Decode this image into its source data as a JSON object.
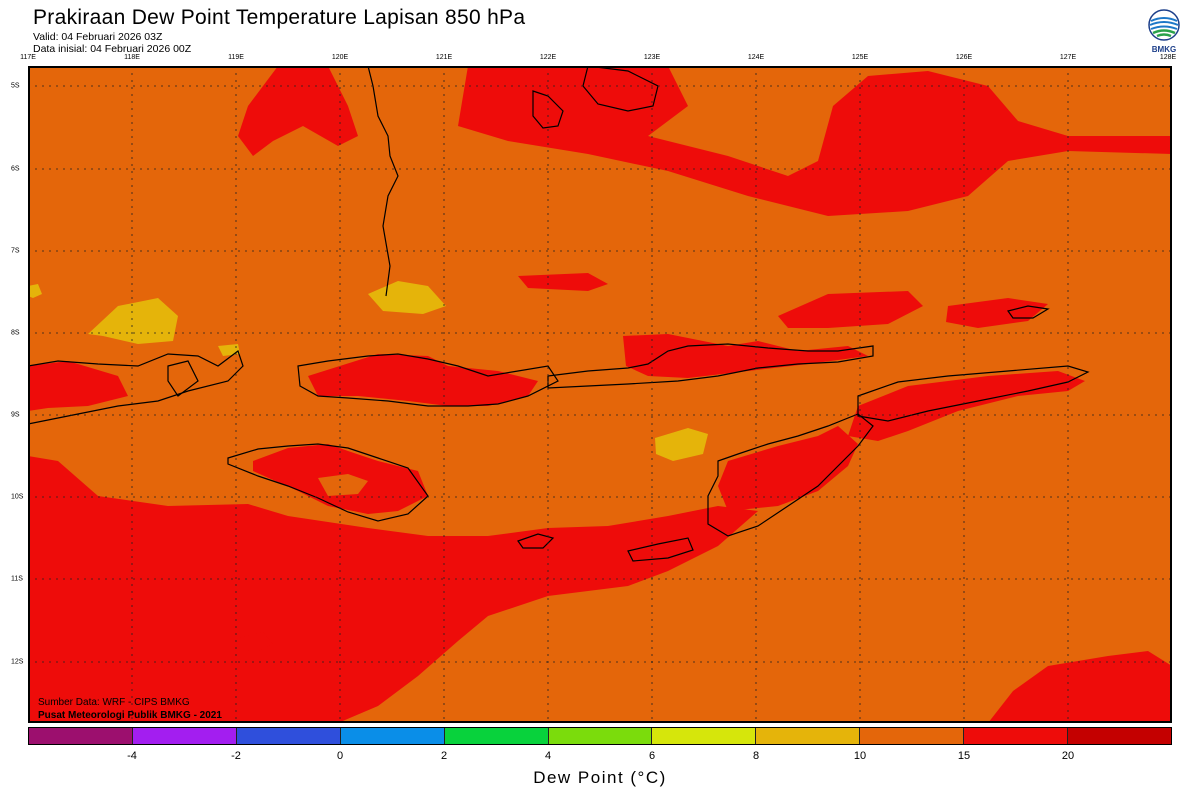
{
  "header": {
    "title": "Prakiraan Dew Point Temperature Lapisan 850 hPa",
    "valid": "Valid: 04 Februari 2026 03Z",
    "initial": "Data inisial: 04 Februari 2026 00Z"
  },
  "logo": {
    "text": "BMKG"
  },
  "axes": {
    "longitudes": [
      "117E",
      "118E",
      "119E",
      "120E",
      "121E",
      "122E",
      "123E",
      "124E",
      "125E",
      "126E",
      "127E",
      "128E"
    ],
    "latitudes": [
      "5S",
      "6S",
      "7S",
      "8S",
      "9S",
      "10S",
      "11S",
      "12S"
    ]
  },
  "source": {
    "line1": "Sumber Data: WRF - CIPS BMKG",
    "line2": "Pusat Meteorologi Publik BMKG - 2021"
  },
  "colorbar": {
    "colors": [
      "#9c0f6e",
      "#a31ef0",
      "#2f4fdc",
      "#0a8ee8",
      "#08d23c",
      "#7bdc0c",
      "#d6e60b",
      "#e5b40a",
      "#e4660a",
      "#ee0c0a",
      "#c40000"
    ],
    "ticks": [
      "-4",
      "-2",
      "0",
      "2",
      "4",
      "6",
      "8",
      "10",
      "15",
      "20"
    ],
    "label": "Dew Point (°C)"
  },
  "map": {
    "background": "#e4660a",
    "red": "#ee0c0a",
    "yellow": "#e5b40a"
  }
}
